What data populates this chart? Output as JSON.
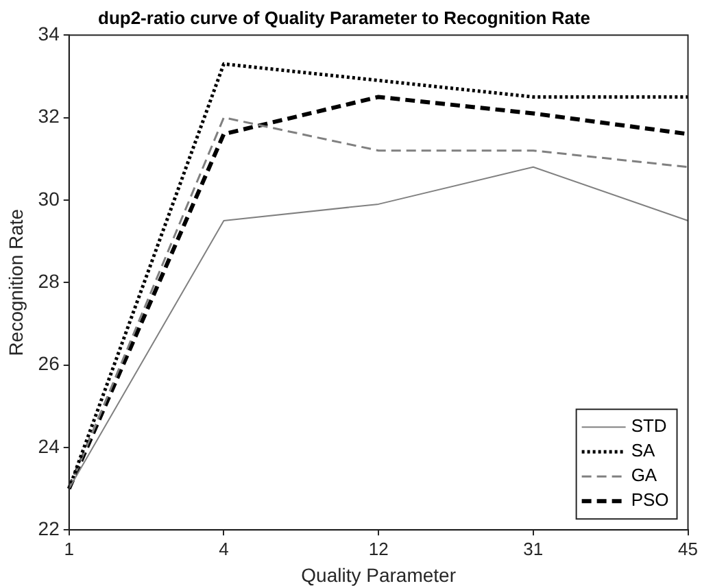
{
  "chart_data": {
    "type": "line",
    "title": "dup2-ratio curve of Quality Parameter to Recognition Rate",
    "xlabel": "Quality Parameter",
    "ylabel": "Recognition Rate",
    "categories": [
      "1",
      "4",
      "12",
      "31",
      "45"
    ],
    "ylim": [
      22,
      34
    ],
    "yticks": [
      22,
      24,
      26,
      28,
      30,
      32,
      34
    ],
    "grid": false,
    "legend": "bottom right",
    "marker": "none",
    "series": [
      {
        "name": "STD",
        "color": "#808080",
        "line_style": "solid",
        "values": [
          23.0,
          29.5,
          29.9,
          30.8,
          29.5
        ]
      },
      {
        "name": "SA",
        "color": "#000000",
        "line_style": "dotted",
        "values": [
          23.0,
          33.3,
          32.9,
          32.5,
          32.5
        ]
      },
      {
        "name": "GA",
        "color": "#808080",
        "line_style": "dashed",
        "values": [
          23.0,
          32.0,
          31.2,
          31.2,
          30.8
        ]
      },
      {
        "name": "PSO",
        "color": "#000000",
        "line_style": "dashed",
        "values": [
          23.0,
          31.6,
          32.5,
          32.1,
          31.6
        ]
      }
    ]
  }
}
